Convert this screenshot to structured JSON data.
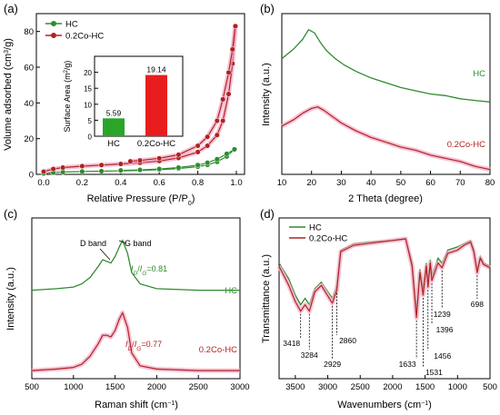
{
  "colors": {
    "hc_green": "#2e8b2e",
    "co_red": "#b22222",
    "co_glow": "#f2a9c4",
    "bar_green": "#2aa52a",
    "bar_red": "#e81e1e"
  },
  "chart_data": [
    {
      "panel": "(a)",
      "type": "line",
      "xlabel": "Relative Pressure (P/P0)",
      "ylabel": "Volume adsorbed (cm3/g)",
      "xlim": [
        0.0,
        1.0
      ],
      "ylim": [
        0,
        90
      ],
      "xticks": [
        "0.0",
        "0.2",
        "0.4",
        "0.6",
        "0.8",
        "1.0"
      ],
      "yticks": [
        "0",
        "20",
        "40",
        "60",
        "80"
      ],
      "legend": [
        "HC",
        "0.2Co-HC"
      ],
      "legend_position": "top-left",
      "series": [
        {
          "name": "HC",
          "adsorption": [
            [
              0.0,
              0.5
            ],
            [
              0.05,
              1.0
            ],
            [
              0.1,
              1.3
            ],
            [
              0.2,
              1.6
            ],
            [
              0.3,
              1.8
            ],
            [
              0.4,
              2.0
            ],
            [
              0.5,
              2.2
            ],
            [
              0.6,
              2.6
            ],
            [
              0.7,
              3.2
            ],
            [
              0.8,
              4.3
            ],
            [
              0.85,
              5.3
            ],
            [
              0.9,
              7.0
            ],
            [
              0.95,
              10.0
            ],
            [
              0.99,
              14.0
            ]
          ],
          "desorption": [
            [
              0.99,
              14.0
            ],
            [
              0.95,
              11.5
            ],
            [
              0.9,
              8.5
            ],
            [
              0.85,
              6.5
            ],
            [
              0.8,
              5.2
            ],
            [
              0.7,
              3.8
            ],
            [
              0.6,
              3.0
            ],
            [
              0.5,
              2.5
            ],
            [
              0.4,
              2.2
            ]
          ]
        },
        {
          "name": "0.2Co-HC",
          "adsorption": [
            [
              0.0,
              1.5
            ],
            [
              0.05,
              3.0
            ],
            [
              0.1,
              3.8
            ],
            [
              0.2,
              4.6
            ],
            [
              0.3,
              5.2
            ],
            [
              0.4,
              5.8
            ],
            [
              0.5,
              6.5
            ],
            [
              0.6,
              7.5
            ],
            [
              0.7,
              9.2
            ],
            [
              0.8,
              12.5
            ],
            [
              0.85,
              16.0
            ],
            [
              0.9,
              22.0
            ],
            [
              0.93,
              30.0
            ],
            [
              0.96,
              45.0
            ],
            [
              0.98,
              62.0
            ],
            [
              0.995,
              83.0
            ]
          ],
          "desorption": [
            [
              0.995,
              83.0
            ],
            [
              0.98,
              70.0
            ],
            [
              0.96,
              57.0
            ],
            [
              0.93,
              42.0
            ],
            [
              0.9,
              30.0
            ],
            [
              0.85,
              21.0
            ],
            [
              0.8,
              16.0
            ],
            [
              0.7,
              11.0
            ],
            [
              0.6,
              9.0
            ],
            [
              0.5,
              7.8
            ],
            [
              0.45,
              7.3
            ]
          ]
        }
      ],
      "inset": {
        "type": "bar",
        "ylabel": "Surface Area (m2/g)",
        "categories": [
          "HC",
          "0.2Co-HC"
        ],
        "values": [
          5.59,
          19.14
        ],
        "value_labels": [
          "5.59",
          "19.14"
        ],
        "ylim": [
          0,
          25
        ],
        "yticks": [
          "0",
          "5",
          "10",
          "15",
          "20"
        ]
      }
    },
    {
      "panel": "(b)",
      "type": "line",
      "xlabel": "2 Theta (degree)",
      "ylabel": "Intensity (a.u.)",
      "xlim": [
        10,
        80
      ],
      "xticks": [
        "10",
        "20",
        "30",
        "40",
        "50",
        "60",
        "70",
        "80"
      ],
      "series": [
        {
          "name": "HC",
          "x": [
            10,
            14,
            17,
            19,
            21,
            23,
            25,
            28,
            31,
            35,
            40,
            45,
            50,
            55,
            60,
            65,
            70,
            75,
            80
          ],
          "y": [
            0.72,
            0.78,
            0.84,
            0.9,
            0.88,
            0.82,
            0.77,
            0.72,
            0.68,
            0.64,
            0.6,
            0.57,
            0.54,
            0.52,
            0.5,
            0.49,
            0.47,
            0.46,
            0.45
          ]
        },
        {
          "name": "0.2Co-HC",
          "x": [
            10,
            14,
            17,
            20,
            22,
            24,
            27,
            30,
            35,
            40,
            45,
            50,
            55,
            60,
            65,
            70,
            75,
            80
          ],
          "y": [
            0.3,
            0.34,
            0.38,
            0.41,
            0.42,
            0.4,
            0.36,
            0.32,
            0.27,
            0.23,
            0.2,
            0.17,
            0.15,
            0.12,
            0.1,
            0.08,
            0.05,
            0.03
          ]
        }
      ]
    },
    {
      "panel": "(c)",
      "type": "line",
      "xlabel": "Raman shift (cm−1)",
      "ylabel": "Intensity (a.u.)",
      "xlim": [
        500,
        3000
      ],
      "xticks": [
        "500",
        "1000",
        "1500",
        "2000",
        "2500",
        "3000"
      ],
      "annotations": [
        "D band",
        "G band",
        "ID/IG=0.81",
        "ID/IG=0.77"
      ],
      "series": [
        {
          "name": "HC",
          "x": [
            500,
            800,
            1000,
            1100,
            1200,
            1300,
            1350,
            1400,
            1450,
            1500,
            1550,
            1590,
            1650,
            1700,
            1800,
            2000,
            2500,
            3000
          ],
          "y": [
            0.55,
            0.56,
            0.57,
            0.59,
            0.63,
            0.7,
            0.74,
            0.73,
            0.72,
            0.76,
            0.82,
            0.86,
            0.78,
            0.66,
            0.59,
            0.56,
            0.55,
            0.55
          ]
        },
        {
          "name": "0.2Co-HC",
          "x": [
            500,
            800,
            1000,
            1100,
            1200,
            1300,
            1350,
            1400,
            1450,
            1500,
            1550,
            1590,
            1650,
            1700,
            1800,
            2000,
            2500,
            3000
          ],
          "y": [
            0.05,
            0.06,
            0.07,
            0.09,
            0.14,
            0.22,
            0.27,
            0.27,
            0.26,
            0.3,
            0.37,
            0.41,
            0.32,
            0.16,
            0.08,
            0.06,
            0.05,
            0.05
          ]
        }
      ]
    },
    {
      "panel": "(d)",
      "type": "line",
      "xlabel": "Wavenumbers (cm−1)",
      "ylabel": "Transmittance (a.u.)",
      "xlim": [
        3750,
        500
      ],
      "xticks": [
        "3500",
        "3000",
        "2500",
        "2000",
        "1500",
        "1000",
        "500"
      ],
      "legend": [
        "HC",
        "0.2Co-HC"
      ],
      "legend_position": "top-left",
      "peak_labels": [
        "3418",
        "3284",
        "2929",
        "2860",
        "1633",
        "1531",
        "1456",
        "1396",
        "1239",
        "698"
      ],
      "series": [
        {
          "name": "HC",
          "x": [
            3750,
            3600,
            3500,
            3418,
            3350,
            3284,
            3200,
            3100,
            2929,
            2860,
            2800,
            2600,
            2400,
            2000,
            1800,
            1700,
            1633,
            1580,
            1531,
            1480,
            1456,
            1420,
            1396,
            1300,
            1239,
            1150,
            1000,
            900,
            850,
            800,
            750,
            698,
            650,
            600,
            500
          ],
          "y": [
            0.72,
            0.62,
            0.52,
            0.46,
            0.5,
            0.46,
            0.56,
            0.6,
            0.5,
            0.58,
            0.8,
            0.84,
            0.85,
            0.86,
            0.87,
            0.72,
            0.42,
            0.68,
            0.56,
            0.72,
            0.6,
            0.74,
            0.64,
            0.75,
            0.72,
            0.8,
            0.82,
            0.84,
            0.85,
            0.86,
            0.8,
            0.68,
            0.76,
            0.72,
            0.7
          ]
        },
        {
          "name": "0.2Co-HC",
          "x": [
            3750,
            3600,
            3500,
            3418,
            3350,
            3284,
            3200,
            3100,
            2929,
            2860,
            2800,
            2600,
            2400,
            2000,
            1800,
            1700,
            1633,
            1580,
            1531,
            1480,
            1456,
            1420,
            1396,
            1300,
            1239,
            1150,
            1000,
            900,
            850,
            800,
            750,
            698,
            650,
            600,
            500
          ],
          "y": [
            0.7,
            0.58,
            0.48,
            0.42,
            0.46,
            0.42,
            0.54,
            0.58,
            0.47,
            0.55,
            0.79,
            0.83,
            0.84,
            0.86,
            0.87,
            0.7,
            0.38,
            0.66,
            0.52,
            0.7,
            0.57,
            0.72,
            0.61,
            0.72,
            0.69,
            0.78,
            0.8,
            0.83,
            0.84,
            0.85,
            0.79,
            0.66,
            0.75,
            0.71,
            0.69
          ]
        }
      ]
    }
  ]
}
